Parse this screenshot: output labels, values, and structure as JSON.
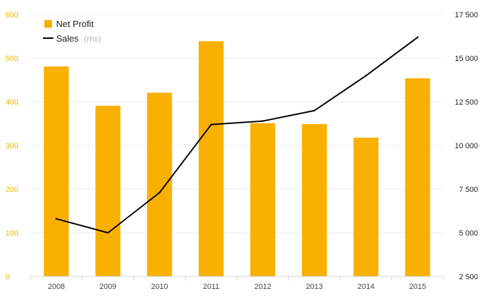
{
  "chart_data": {
    "type": "bar",
    "categories": [
      "2008",
      "2009",
      "2010",
      "2011",
      "2012",
      "2013",
      "2014",
      "2015"
    ],
    "series": [
      {
        "name": "Net Profit",
        "type": "bar",
        "axis": "left",
        "color": "#fab000",
        "values": [
          481,
          391,
          421,
          539,
          351,
          349,
          318,
          454
        ]
      },
      {
        "name": "Sales",
        "name_note": "(rhs)",
        "type": "line",
        "axis": "right",
        "color": "#000000",
        "values": [
          5800,
          5000,
          7300,
          11200,
          11400,
          12000,
          14000,
          16200
        ]
      }
    ],
    "y_left": {
      "min": 0,
      "max": 600,
      "ticks": [
        "0",
        "100",
        "200",
        "300",
        "400",
        "500",
        "600"
      ]
    },
    "y_right": {
      "min": 2500,
      "max": 17500,
      "ticks": [
        "2 500",
        "5 000",
        "7 500",
        "10 000",
        "12 500",
        "15 000",
        "17 500"
      ]
    },
    "grid": true,
    "legend_position": "top-left"
  }
}
